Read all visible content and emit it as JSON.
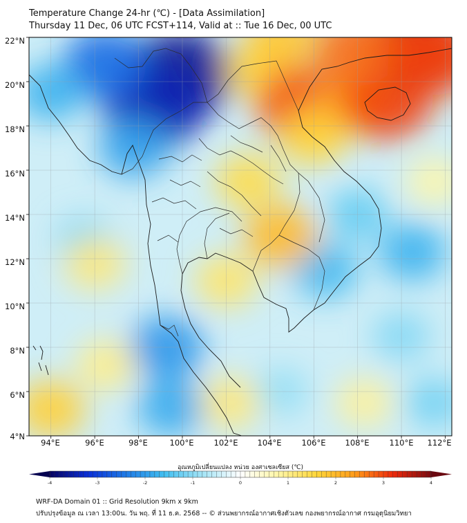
{
  "header": {
    "title_line1": "Temperature Change 24-hr (℃) - [Data Assimilation]",
    "title_line2": "Thursday 11 Dec, 06 UTC FCST+114, Valid at :: Tue 16 Dec, 00 UTC"
  },
  "axes": {
    "y_labels": [
      "22°N",
      "20°N",
      "18°N",
      "16°N",
      "14°N",
      "12°N",
      "10°N",
      "8°N",
      "6°N",
      "4°N"
    ],
    "x_labels": [
      "94°E",
      "96°E",
      "98°E",
      "100°E",
      "102°E",
      "104°E",
      "106°E",
      "108°E",
      "110°E",
      "112°E"
    ],
    "lat_range": [
      4,
      22
    ],
    "lon_range": [
      93,
      112.3
    ]
  },
  "colorbar": {
    "title": "อุณหภูมิเปลี่ยนแปลง หน่วย องศาเซลเซียส (℃)",
    "ticks": [
      "-4",
      "-3",
      "-2",
      "-1",
      "0",
      "1",
      "2",
      "3",
      "4"
    ],
    "range": [
      -4,
      4
    ]
  },
  "footer": {
    "line1": "WRF-DA Domain 01 :: Grid Resolution 9km x 9km",
    "line2": "ปรับปรุงข้อมูล ณ เวลา 13:00น. วัน พฤ. ที่ 11 ธ.ค. 2568 -- © ส่วนพยากรณ์อากาศเชิงตัวเลข กองพยากรณ์อากาศ กรมอุตุนิยมวิทยา"
  },
  "field_blobs": [
    {
      "lon": 99.9,
      "lat": 20.3,
      "value": -3.6
    },
    {
      "lon": 98.7,
      "lat": 18.9,
      "value": -3.3
    },
    {
      "lon": 96.5,
      "lat": 20.8,
      "value": -2.2
    },
    {
      "lon": 97.8,
      "lat": 17.0,
      "value": -1.4
    },
    {
      "lon": 94.0,
      "lat": 19.5,
      "value": -1.2
    },
    {
      "lon": 95.5,
      "lat": 12.8,
      "value": -0.6
    },
    {
      "lon": 96.0,
      "lat": 11.8,
      "value": 0.8
    },
    {
      "lon": 99.3,
      "lat": 8.0,
      "value": -1.6
    },
    {
      "lon": 99.5,
      "lat": 5.3,
      "value": -1.3
    },
    {
      "lon": 104.5,
      "lat": 6.0,
      "value": -0.5
    },
    {
      "lon": 102.2,
      "lat": 5.5,
      "value": 0.8
    },
    {
      "lon": 96.5,
      "lat": 7.2,
      "value": 0.7
    },
    {
      "lon": 94.0,
      "lat": 5.2,
      "value": 1.3
    },
    {
      "lon": 106.5,
      "lat": 11.5,
      "value": -1.1
    },
    {
      "lon": 108.0,
      "lat": 14.0,
      "value": -0.8
    },
    {
      "lon": 110.5,
      "lat": 12.3,
      "value": -1.2
    },
    {
      "lon": 110.0,
      "lat": 8.5,
      "value": -0.6
    },
    {
      "lon": 111.5,
      "lat": 5.5,
      "value": -0.7
    },
    {
      "lon": 108.3,
      "lat": 5.5,
      "value": 0.6
    },
    {
      "lon": 103.0,
      "lat": 15.5,
      "value": 1.1
    },
    {
      "lon": 104.5,
      "lat": 13.0,
      "value": 1.6
    },
    {
      "lon": 102.0,
      "lat": 11.0,
      "value": 0.9
    },
    {
      "lon": 103.5,
      "lat": 20.5,
      "value": 1.2
    },
    {
      "lon": 105.4,
      "lat": 19.0,
      "value": 2.6
    },
    {
      "lon": 106.0,
      "lat": 17.5,
      "value": 1.2
    },
    {
      "lon": 108.0,
      "lat": 19.0,
      "value": 1.6
    },
    {
      "lon": 109.3,
      "lat": 19.2,
      "value": 2.8
    },
    {
      "lon": 110.5,
      "lat": 21.7,
      "value": 3.4
    },
    {
      "lon": 108.0,
      "lat": 21.5,
      "value": 2.4
    },
    {
      "lon": 111.5,
      "lat": 21.2,
      "value": 2.8
    },
    {
      "lon": 104.5,
      "lat": 22.0,
      "value": 1.4
    },
    {
      "lon": 111.5,
      "lat": 15.5,
      "value": 0.5
    }
  ]
}
